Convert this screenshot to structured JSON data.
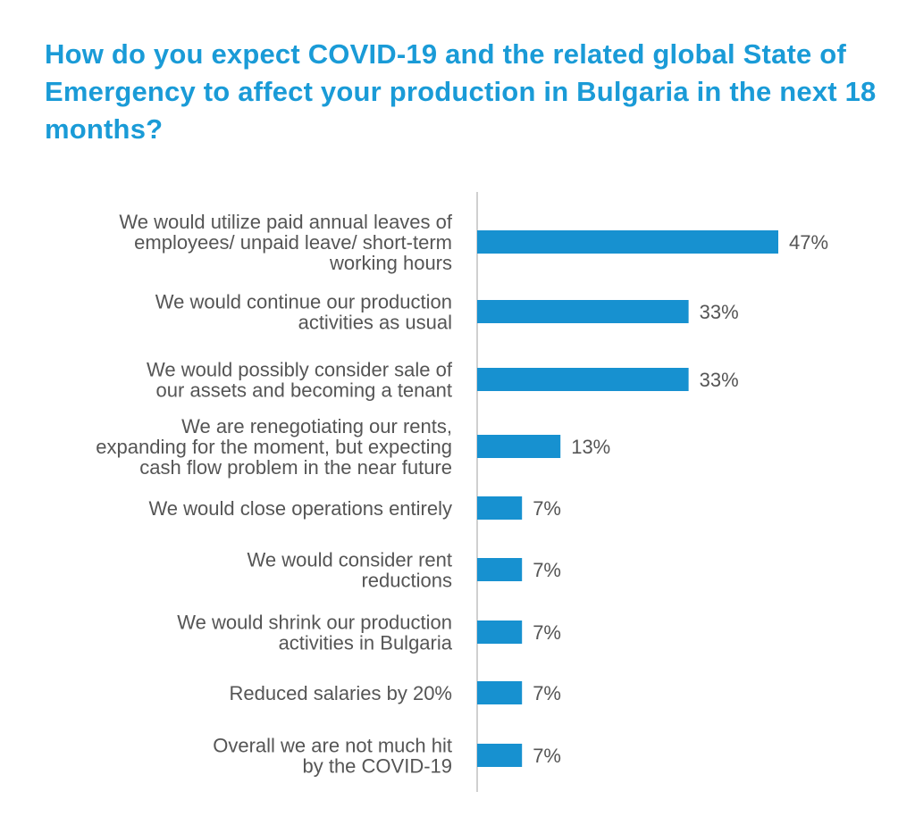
{
  "title": "How do you expect COVID-19 and the related global State of Emergency to affect your production in Bulgaria in the next 18 months?",
  "colors": {
    "title": "#1a9bd7",
    "bar": "#1791d0",
    "text": "#555555",
    "axis": "#d0d0d0"
  },
  "chart_data": {
    "type": "bar",
    "orientation": "horizontal",
    "title": "How do you expect COVID-19 and the related global State of Emergency to affect your production in Bulgaria in the next 18 months?",
    "categories": [
      [
        "We would utilize paid annual leaves of",
        "employees/ unpaid leave/ short-term",
        "working hours"
      ],
      [
        "We would continue our production",
        "activities as usual"
      ],
      [
        "We would possibly consider sale of",
        "our assets and becoming a tenant"
      ],
      [
        "We are renegotiating our rents,",
        "expanding for the moment, but expecting",
        "cash flow problem in the near future"
      ],
      [
        "We would close operations entirely"
      ],
      [
        "We would consider rent",
        "reductions"
      ],
      [
        "We would shrink our production",
        "activities in Bulgaria"
      ],
      [
        "Reduced salaries by 20%"
      ],
      [
        "Overall we are not much hit",
        "by the COVID-19"
      ]
    ],
    "values": [
      47,
      33,
      33,
      13,
      7,
      7,
      7,
      7,
      7
    ],
    "value_labels": [
      "47%",
      "33%",
      "33%",
      "13%",
      "7%",
      "7%",
      "7%",
      "7%",
      "7%"
    ],
    "unit": "%",
    "xlim": [
      0,
      50
    ],
    "grid": false,
    "legend": "none"
  }
}
